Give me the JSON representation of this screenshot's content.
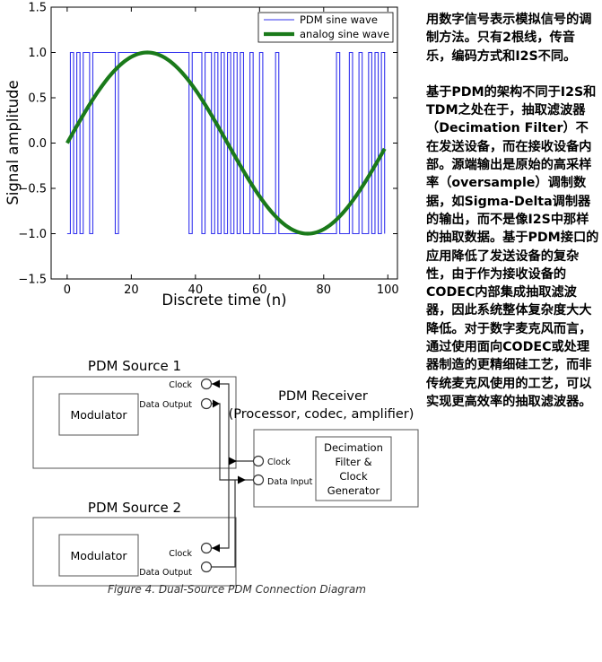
{
  "chart_data": {
    "type": "line",
    "xlabel": "Discrete time (n)",
    "ylabel": "Signal amplitude",
    "xlim": [
      -5,
      103
    ],
    "ylim": [
      -1.5,
      1.5
    ],
    "xticks": [
      "0",
      "20",
      "40",
      "60",
      "80",
      "100"
    ],
    "yticks": [
      "−1.5",
      "−1.0",
      "−0.5",
      "0.0",
      "0.5",
      "1.0",
      "1.5"
    ],
    "legend_position": "top-right",
    "series": [
      {
        "name": "PDM sine wave",
        "color": "#3333ee",
        "style": "step",
        "x": [
          0,
          1,
          2,
          3,
          4,
          5,
          6,
          7,
          8,
          9,
          10,
          11,
          12,
          13,
          14,
          15,
          16,
          17,
          18,
          19,
          20,
          21,
          22,
          23,
          24,
          25,
          26,
          27,
          28,
          29,
          30,
          31,
          32,
          33,
          34,
          35,
          36,
          37,
          38,
          39,
          40,
          41,
          42,
          43,
          44,
          45,
          46,
          47,
          48,
          49,
          50,
          51,
          52,
          53,
          54,
          55,
          56,
          57,
          58,
          59,
          60,
          61,
          62,
          63,
          64,
          65,
          66,
          67,
          68,
          69,
          70,
          71,
          72,
          73,
          74,
          75,
          76,
          77,
          78,
          79,
          80,
          81,
          82,
          83,
          84,
          85,
          86,
          87,
          88,
          89,
          90,
          91,
          92,
          93,
          94,
          95,
          96,
          97,
          98,
          99
        ],
        "values": [
          -1,
          1,
          -1,
          1,
          -1,
          1,
          1,
          -1,
          1,
          1,
          1,
          1,
          1,
          1,
          1,
          -1,
          1,
          1,
          1,
          1,
          1,
          1,
          1,
          1,
          1,
          1,
          1,
          1,
          1,
          1,
          1,
          1,
          1,
          1,
          1,
          1,
          1,
          1,
          -1,
          1,
          1,
          1,
          -1,
          1,
          1,
          -1,
          1,
          -1,
          1,
          -1,
          1,
          -1,
          1,
          -1,
          1,
          -1,
          -1,
          1,
          -1,
          -1,
          1,
          -1,
          -1,
          -1,
          -1,
          1,
          -1,
          -1,
          -1,
          -1,
          -1,
          -1,
          -1,
          -1,
          -1,
          -1,
          -1,
          -1,
          -1,
          -1,
          -1,
          -1,
          -1,
          -1,
          1,
          -1,
          -1,
          -1,
          1,
          -1,
          -1,
          1,
          -1,
          -1,
          1,
          -1,
          1,
          -1,
          1,
          -1
        ]
      },
      {
        "name": "analog sine wave",
        "color": "#1a7a1a",
        "style": "sine",
        "period": 100,
        "x_start": 0,
        "x_end": 99
      }
    ]
  },
  "diagram": {
    "source1": {
      "title": "PDM Source 1",
      "modulator": "Modulator",
      "clock": "Clock",
      "data_output": "Data Output"
    },
    "source2": {
      "title": "PDM Source 2",
      "modulator": "Modulator",
      "clock": "Clock",
      "data_output": "Data Output"
    },
    "receiver": {
      "title_line1": "PDM Receiver",
      "title_line2": "(Processor, codec, amplifier)",
      "clock": "Clock",
      "data_input": "Data Input",
      "filter_line1": "Decimation",
      "filter_line2": "Filter &",
      "filter_line3": "Clock",
      "filter_line4": "Generator"
    },
    "caption": "Figure 4. Dual-Source PDM Connection Diagram"
  },
  "description": {
    "paragraph1": "用数字信号表示模拟信号的调制方法。只有2根线，传音乐，编码方式和I2S不同。",
    "paragraph2": "基于PDM的架构不同于I2S和TDM之处在于，抽取滤波器（Decimation Filter）不在发送设备，而在接收设备内部。源端输出是原始的高采样率（oversample）调制数据，如Sigma-Delta调制器的输出，而不是像I2S中那样的抽取数据。基于PDM接口的应用降低了发送设备的复杂性，由于作为接收设备的CODEC内部集成抽取滤波器，因此系统整体复杂度大大降低。对于数字麦克风而言，通过使用面向CODEC或处理器制造的更精细硅工艺，而非传统麦克风使用的工艺，可以实现更高效率的抽取滤波器。"
  }
}
